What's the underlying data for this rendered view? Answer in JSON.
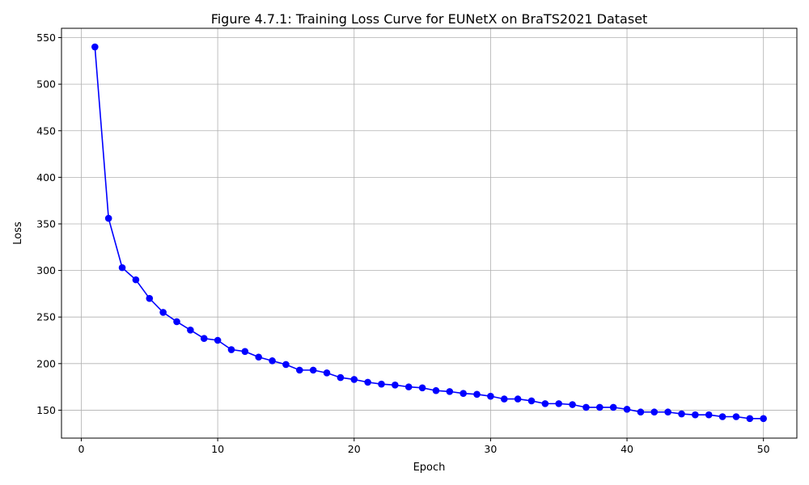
{
  "chart_data": {
    "type": "line",
    "title": "Figure 4.7.1: Training Loss Curve for EUNetX on BraTS2021 Dataset",
    "xlabel": "Epoch",
    "ylabel": "Loss",
    "xlim": [
      -1.45,
      52.45
    ],
    "ylim": [
      120,
      560
    ],
    "x_ticks": [
      0,
      10,
      20,
      30,
      40,
      50
    ],
    "y_ticks": [
      150,
      200,
      250,
      300,
      350,
      400,
      450,
      500,
      550
    ],
    "grid": true,
    "line_color": "#0000ff",
    "marker": "circle",
    "series": [
      {
        "x": [
          1,
          2,
          3,
          4,
          5,
          6,
          7,
          8,
          9,
          10,
          11,
          12,
          13,
          14,
          15,
          16,
          17,
          18,
          19,
          20,
          21,
          22,
          23,
          24,
          25,
          26,
          27,
          28,
          29,
          30,
          31,
          32,
          33,
          34,
          35,
          36,
          37,
          38,
          39,
          40,
          41,
          42,
          43,
          44,
          45,
          46,
          47,
          48,
          49,
          50
        ],
        "values": [
          540,
          356,
          303,
          290,
          270,
          255,
          245,
          236,
          227,
          225,
          215,
          213,
          207,
          203,
          199,
          193,
          193,
          190,
          185,
          183,
          180,
          178,
          177,
          175,
          174,
          171,
          170,
          168,
          167,
          165,
          162,
          162,
          160,
          157,
          157,
          156,
          153,
          153,
          153,
          151,
          148,
          148,
          148,
          146,
          145,
          145,
          143,
          143,
          141,
          141
        ]
      }
    ]
  }
}
